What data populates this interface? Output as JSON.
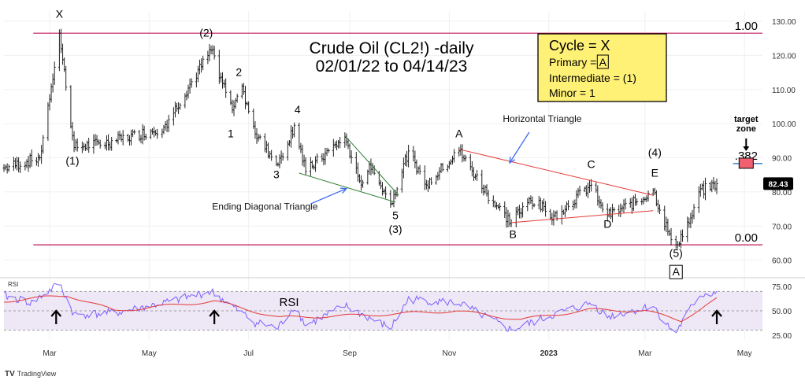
{
  "chart_data": {
    "type": "candlestick",
    "title_lines": [
      "Crude Oil (CL2!) -daily",
      "02/01/22 to 04/14/23"
    ],
    "price_axis": {
      "ticks": [
        60,
        70,
        80,
        90,
        100,
        110,
        120,
        130
      ],
      "ylim": [
        56,
        133
      ]
    },
    "rsi_axis": {
      "ticks": [
        25,
        50,
        75
      ],
      "ylim": [
        20,
        80
      ],
      "band": [
        30,
        70
      ]
    },
    "x_axis": {
      "ticks": [
        "Mar",
        "May",
        "Jul",
        "Sep",
        "Nov",
        "2023",
        "Mar",
        "May"
      ],
      "tick_dates": [
        "2022-03-01",
        "2022-05-01",
        "2022-07-01",
        "2022-09-01",
        "2022-11-01",
        "2023-01-01",
        "2023-03-01",
        "2023-05-01"
      ],
      "xlim": [
        "2022-02-01",
        "2023-05-12"
      ]
    },
    "last_price": "82.43",
    "fib_levels": [
      {
        "label": "1.00",
        "value": 126.5
      },
      {
        "label": ".382",
        "value": 88.3
      },
      {
        "label": "0.00",
        "value": 64.5
      }
    ],
    "price_pivots": [
      {
        "date": "2022-02-01",
        "price": 87
      },
      {
        "date": "2022-02-23",
        "price": 90
      },
      {
        "date": "2022-03-07",
        "price": 126.5
      },
      {
        "date": "2022-03-16",
        "price": 93
      },
      {
        "date": "2022-04-11",
        "price": 95
      },
      {
        "date": "2022-05-10",
        "price": 99
      },
      {
        "date": "2022-06-08",
        "price": 121.5
      },
      {
        "date": "2022-06-21",
        "price": 104
      },
      {
        "date": "2022-06-27",
        "price": 111
      },
      {
        "date": "2022-07-05",
        "price": 97
      },
      {
        "date": "2022-07-19",
        "price": 88
      },
      {
        "date": "2022-07-29",
        "price": 99.5
      },
      {
        "date": "2022-08-05",
        "price": 86
      },
      {
        "date": "2022-08-29",
        "price": 96
      },
      {
        "date": "2022-09-08",
        "price": 82
      },
      {
        "date": "2022-09-13",
        "price": 88
      },
      {
        "date": "2022-09-26",
        "price": 76.5
      },
      {
        "date": "2022-10-07",
        "price": 92
      },
      {
        "date": "2022-10-18",
        "price": 82
      },
      {
        "date": "2022-11-07",
        "price": 92
      },
      {
        "date": "2022-11-28",
        "price": 77
      },
      {
        "date": "2022-12-09",
        "price": 71
      },
      {
        "date": "2022-12-20",
        "price": 78
      },
      {
        "date": "2023-01-04",
        "price": 73
      },
      {
        "date": "2023-01-27",
        "price": 82
      },
      {
        "date": "2023-02-06",
        "price": 73
      },
      {
        "date": "2023-02-23",
        "price": 77
      },
      {
        "date": "2023-03-06",
        "price": 80.5
      },
      {
        "date": "2023-03-17",
        "price": 66
      },
      {
        "date": "2023-03-20",
        "price": 64.5
      },
      {
        "date": "2023-03-30",
        "price": 73
      },
      {
        "date": "2023-04-03",
        "price": 80
      },
      {
        "date": "2023-04-14",
        "price": 82.4
      }
    ],
    "rsi_label": "RSI",
    "rsi_pivots": [
      {
        "date": "2022-02-01",
        "rsi": 66
      },
      {
        "date": "2022-02-18",
        "rsi": 58
      },
      {
        "date": "2022-03-07",
        "rsi": 78
      },
      {
        "date": "2022-03-16",
        "rsi": 46
      },
      {
        "date": "2022-04-11",
        "rsi": 48
      },
      {
        "date": "2022-05-10",
        "rsi": 58
      },
      {
        "date": "2022-06-08",
        "rsi": 70
      },
      {
        "date": "2022-07-05",
        "rsi": 38
      },
      {
        "date": "2022-07-19",
        "rsi": 32
      },
      {
        "date": "2022-07-29",
        "rsi": 55
      },
      {
        "date": "2022-08-05",
        "rsi": 35
      },
      {
        "date": "2022-08-29",
        "rsi": 55
      },
      {
        "date": "2022-09-26",
        "rsi": 32
      },
      {
        "date": "2022-10-07",
        "rsi": 62
      },
      {
        "date": "2022-11-07",
        "rsi": 58
      },
      {
        "date": "2022-12-09",
        "rsi": 30
      },
      {
        "date": "2023-01-04",
        "rsi": 46
      },
      {
        "date": "2023-01-27",
        "rsi": 58
      },
      {
        "date": "2023-02-06",
        "rsi": 44
      },
      {
        "date": "2023-03-06",
        "rsi": 55
      },
      {
        "date": "2023-03-17",
        "rsi": 30
      },
      {
        "date": "2023-03-20",
        "rsi": 28
      },
      {
        "date": "2023-04-03",
        "rsi": 66
      },
      {
        "date": "2023-04-14",
        "rsi": 69
      }
    ],
    "rsi_ma_pivots": [
      {
        "date": "2022-02-01",
        "rsi": 60
      },
      {
        "date": "2022-03-12",
        "rsi": 66
      },
      {
        "date": "2022-04-10",
        "rsi": 50
      },
      {
        "date": "2022-06-10",
        "rsi": 60
      },
      {
        "date": "2022-07-20",
        "rsi": 43
      },
      {
        "date": "2022-09-01",
        "rsi": 45
      },
      {
        "date": "2022-10-01",
        "rsi": 47
      },
      {
        "date": "2022-11-05",
        "rsi": 50
      },
      {
        "date": "2022-12-15",
        "rsi": 41
      },
      {
        "date": "2023-01-25",
        "rsi": 51
      },
      {
        "date": "2023-03-01",
        "rsi": 50
      },
      {
        "date": "2023-03-23",
        "rsi": 40
      },
      {
        "date": "2023-04-14",
        "rsi": 62
      }
    ],
    "rsi_arrows": [
      "2022-03-05",
      "2022-06-10",
      "2023-04-14"
    ],
    "wave_labels": [
      {
        "text": "X",
        "date": "2022-03-07",
        "price": 131
      },
      {
        "text": "(1)",
        "date": "2022-03-15",
        "price": 88
      },
      {
        "text": "(2)",
        "date": "2022-06-05",
        "price": 125.5
      },
      {
        "text": "2",
        "date": "2022-06-25",
        "price": 114
      },
      {
        "text": "1",
        "date": "2022-06-20",
        "price": 96
      },
      {
        "text": "3",
        "date": "2022-07-18",
        "price": 84
      },
      {
        "text": "4",
        "date": "2022-07-31",
        "price": 103
      },
      {
        "text": "5",
        "date": "2022-09-29",
        "price": 72
      },
      {
        "text": "(3)",
        "date": "2022-09-29",
        "price": 68
      },
      {
        "text": "A",
        "date": "2022-11-07",
        "price": 96
      },
      {
        "text": "B",
        "date": "2022-12-10",
        "price": 66.5
      },
      {
        "text": "C",
        "date": "2023-01-27",
        "price": 87
      },
      {
        "text": "D",
        "date": "2023-02-06",
        "price": 69.5
      },
      {
        "text": "E",
        "date": "2023-03-07",
        "price": 84.5
      },
      {
        "text": "(4)",
        "date": "2023-03-07",
        "price": 90.5
      },
      {
        "text": "(5)",
        "date": "2023-03-20",
        "price": 61
      }
    ],
    "boxed_labels": [
      {
        "text": "A",
        "date": "2023-03-20",
        "price": 55.5
      }
    ],
    "annotations": {
      "horizontal_triangle": "Horizontal Triangle",
      "ending_diagonal_triangle": "Ending Diagonal Triangle",
      "target_zone_lines": [
        "target",
        "zone"
      ]
    },
    "legend_box": {
      "line1": "Cycle = X",
      "line2_prefix": "Primary = ",
      "line2_boxed": "A",
      "line3": "Intermediate = (1)",
      "line4": "Minor = 1"
    }
  },
  "colors": {
    "fib_line": "#c2185b",
    "retrace_line": "#1565c0",
    "diagonal": "#2e7d32",
    "triangle": "#e53935",
    "rsi_line": "#7b61ff",
    "rsi_ma": "#e53935",
    "rsi_band": "#ede7f6",
    "legend_bg": "#fff176",
    "target_box": "#f06070",
    "arrow_blue": "#3d6bf0"
  },
  "watermark": "TradingView"
}
